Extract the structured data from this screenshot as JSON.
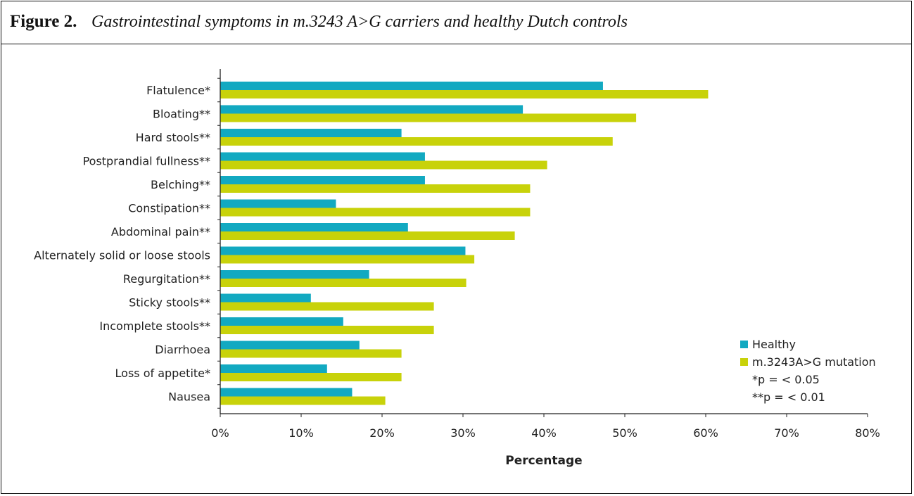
{
  "figure": {
    "label": "Figure 2.",
    "caption": "Gastrointestinal symptoms in m.3243 A>G carriers and healthy Dutch controls"
  },
  "colors": {
    "healthy": "#12A9C1",
    "mutation": "#C8D20A",
    "axis": "#222222"
  },
  "chart_data": {
    "type": "bar",
    "orientation": "horizontal",
    "categories": [
      "Flatulence*",
      "Bloating**",
      "Hard stools**",
      "Postprandial fullness**",
      "Belching**",
      "Constipation**",
      "Abdominal pain**",
      "Alternately solid or loose stools",
      "Regurgitation**",
      "Sticky stools**",
      "Incomplete stools**",
      "Diarrhoea",
      "Loss of appetite*",
      "Nausea"
    ],
    "series": [
      {
        "name": "Healthy",
        "values": [
          47.3,
          37.4,
          22.4,
          25.3,
          25.3,
          14.3,
          23.2,
          30.3,
          18.4,
          11.2,
          15.2,
          17.2,
          13.2,
          16.3
        ]
      },
      {
        "name": "m.3243A>G mutation",
        "values": [
          60.3,
          51.4,
          48.5,
          40.4,
          38.3,
          38.3,
          36.4,
          31.4,
          30.4,
          26.4,
          26.4,
          22.4,
          22.4,
          20.4
        ]
      }
    ],
    "xlim": [
      0,
      80
    ],
    "xticks": [
      "0%",
      "10%",
      "20%",
      "30%",
      "40%",
      "50%",
      "60%",
      "70%",
      "80%"
    ],
    "xlabel": "Percentage",
    "ylabel": "",
    "legend_notes": [
      "*p = < 0.05",
      "**p = < 0.01"
    ],
    "legend_position": "right",
    "grid": false
  }
}
